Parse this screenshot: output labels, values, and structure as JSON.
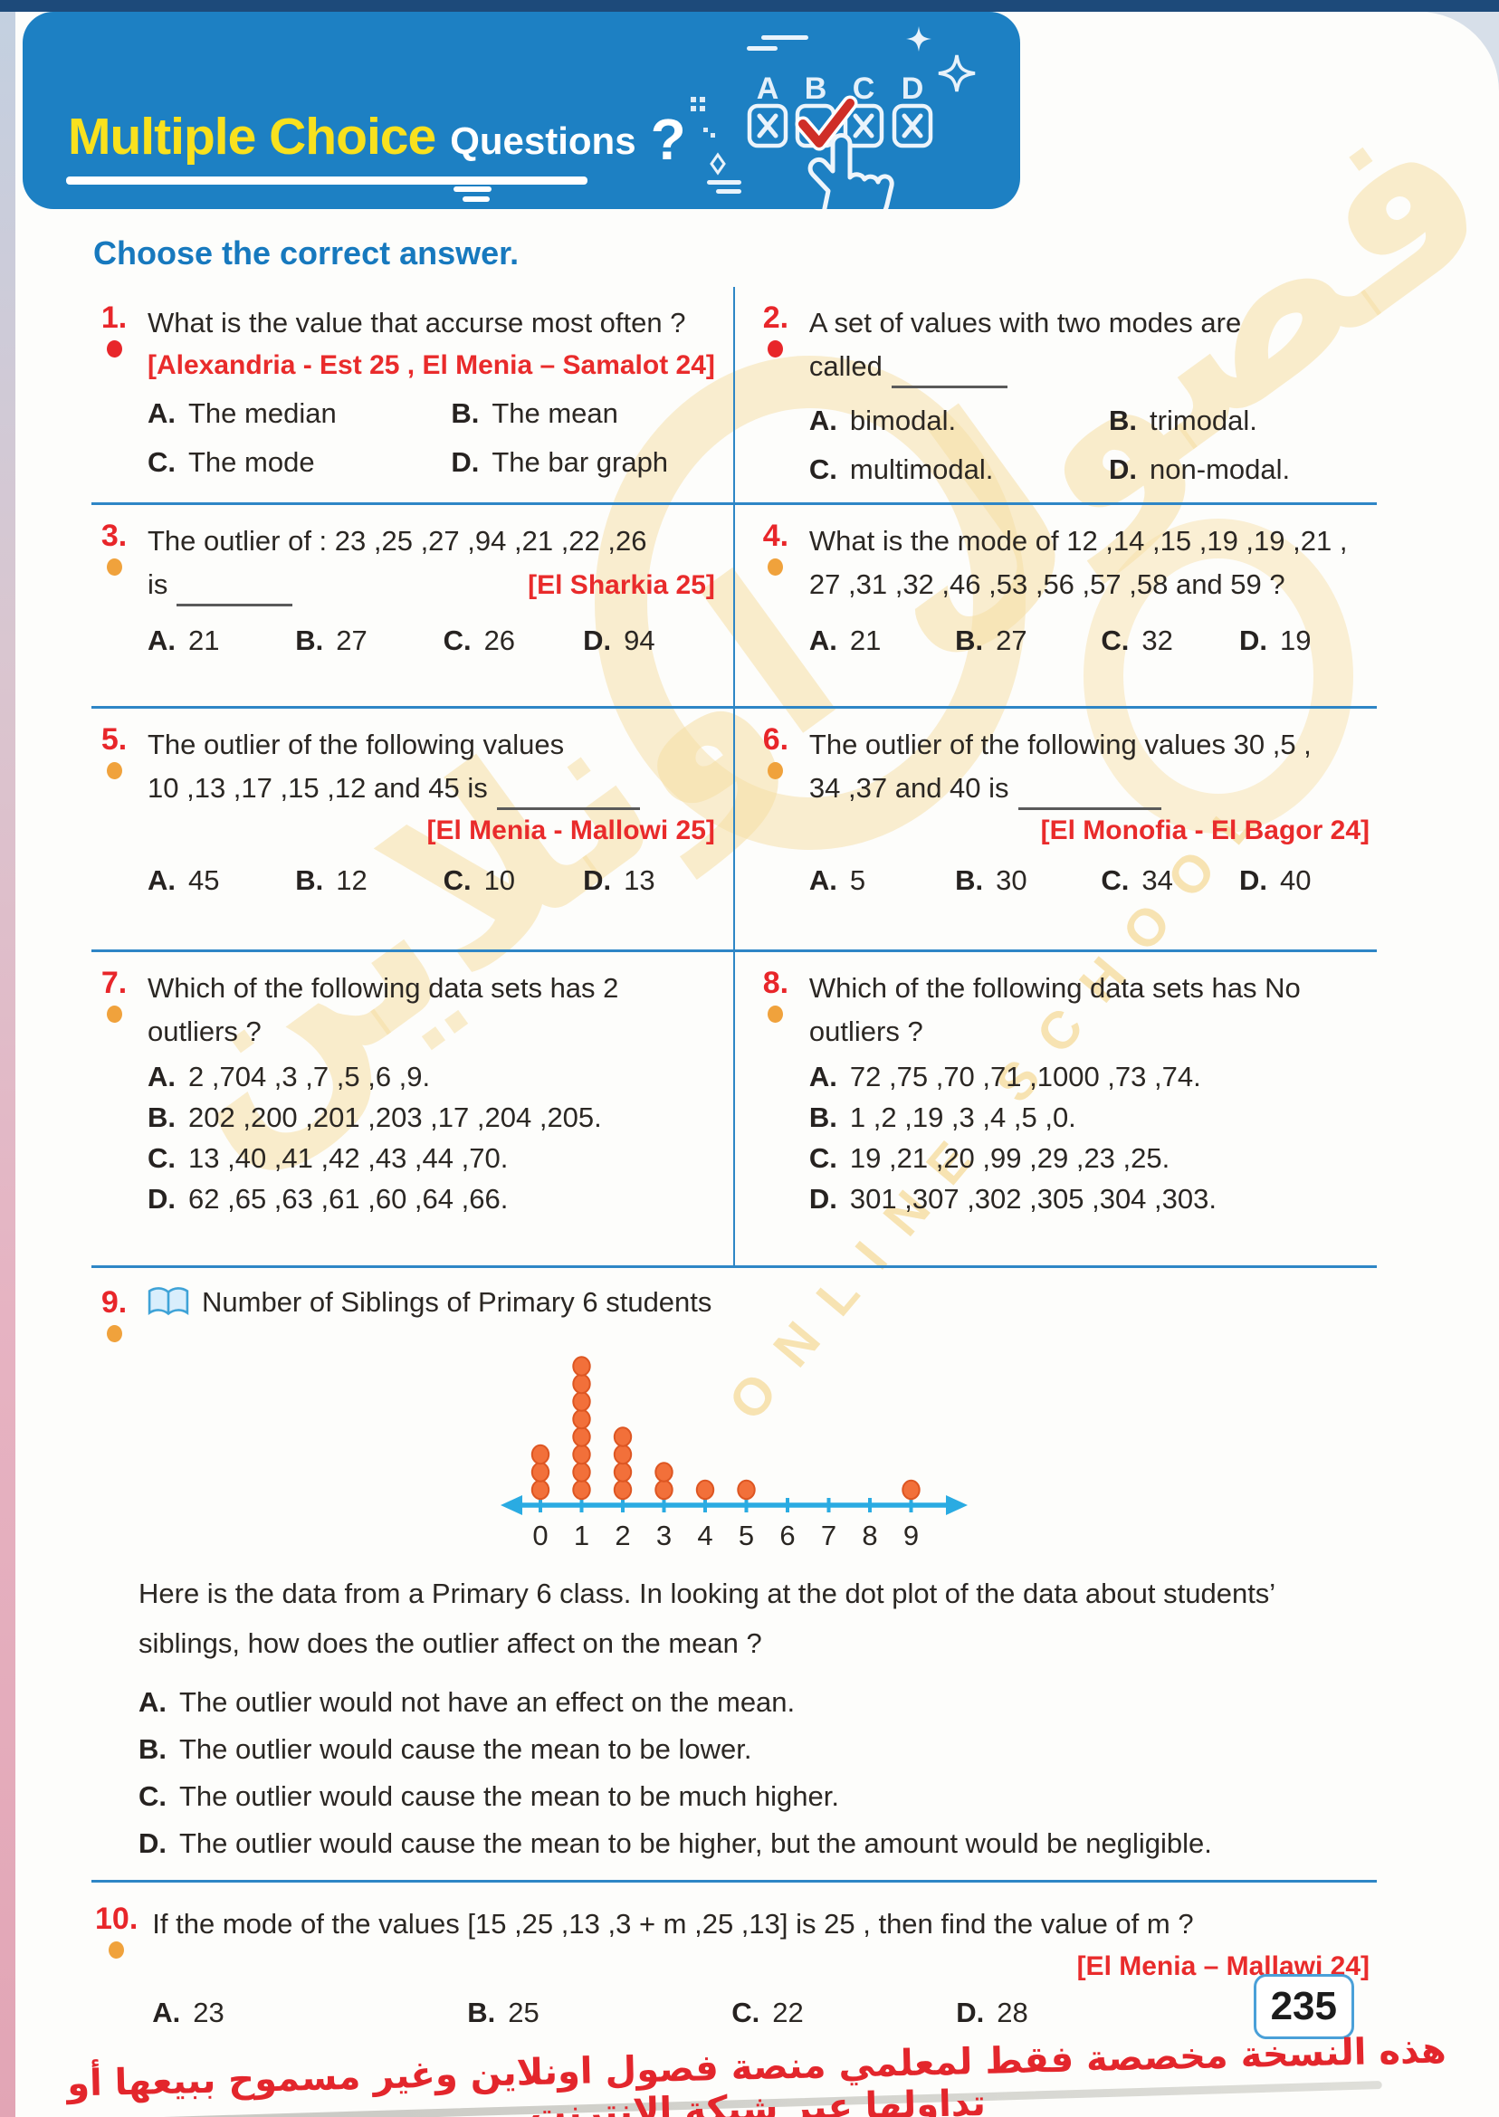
{
  "header": {
    "title_highlight": "Multiple Choice",
    "title_rest": "Questions",
    "question_mark": "?",
    "answer_icon": {
      "labels": [
        "A",
        "B",
        "C",
        "D"
      ],
      "checked": "B"
    }
  },
  "instruction": "Choose the correct answer.",
  "questions": [
    {
      "num": "1.",
      "text": "What is the value that accurse most often ?",
      "citation": "[Alexandria - Est 25 , El Menia – Samalot 24]",
      "options": [
        {
          "label": "A.",
          "text": "The median"
        },
        {
          "label": "B.",
          "text": "The mean"
        },
        {
          "label": "C.",
          "text": "The mode"
        },
        {
          "label": "D.",
          "text": "The bar graph"
        }
      ]
    },
    {
      "num": "2.",
      "text": "A set of values with two modes are",
      "text2": "called",
      "options": [
        {
          "label": "A.",
          "text": "bimodal."
        },
        {
          "label": "B.",
          "text": "trimodal."
        },
        {
          "label": "C.",
          "text": "multimodal."
        },
        {
          "label": "D.",
          "text": "non-modal."
        }
      ]
    },
    {
      "num": "3.",
      "text": "The outlier of : 23 ,25 ,27 ,94 ,21 ,22 ,26",
      "text2": "is",
      "citation": "[El Sharkia 25]",
      "options": [
        {
          "label": "A.",
          "text": "21"
        },
        {
          "label": "B.",
          "text": "27"
        },
        {
          "label": "C.",
          "text": "26"
        },
        {
          "label": "D.",
          "text": "94"
        }
      ]
    },
    {
      "num": "4.",
      "text": "What is the mode of 12 ,14 ,15 ,19 ,19 ,21 , 27 ,31 ,32 ,46 ,53 ,56 ,57 ,58 and 59 ?",
      "options": [
        {
          "label": "A.",
          "text": "21"
        },
        {
          "label": "B.",
          "text": "27"
        },
        {
          "label": "C.",
          "text": "32"
        },
        {
          "label": "D.",
          "text": "19"
        }
      ]
    },
    {
      "num": "5.",
      "text": "The outlier of the following values",
      "text2": "10 ,13 ,17 ,15 ,12 and 45 is",
      "citation": "[El Menia - Mallowi 25]",
      "options": [
        {
          "label": "A.",
          "text": "45"
        },
        {
          "label": "B.",
          "text": "12"
        },
        {
          "label": "C.",
          "text": "10"
        },
        {
          "label": "D.",
          "text": "13"
        }
      ]
    },
    {
      "num": "6.",
      "text": "The outlier of the following values 30 ,5 ,",
      "text2": "34 ,37 and 40 is",
      "citation": "[El Monofia - El Bagor 24]",
      "options": [
        {
          "label": "A.",
          "text": "5"
        },
        {
          "label": "B.",
          "text": "30"
        },
        {
          "label": "C.",
          "text": "34"
        },
        {
          "label": "D.",
          "text": "40"
        }
      ]
    },
    {
      "num": "7.",
      "text": "Which of the following data sets has 2 outliers ?",
      "options": [
        {
          "label": "A.",
          "text": "2 ,704 ,3 ,7 ,5 ,6 ,9."
        },
        {
          "label": "B.",
          "text": "202 ,200 ,201 ,203 ,17 ,204 ,205."
        },
        {
          "label": "C.",
          "text": "13 ,40 ,41 ,42 ,43 ,44 ,70."
        },
        {
          "label": "D.",
          "text": "62 ,65 ,63 ,61 ,60 ,64 ,66."
        }
      ]
    },
    {
      "num": "8.",
      "text": "Which of the following data sets has No outliers ?",
      "options": [
        {
          "label": "A.",
          "text": "72 ,75 ,70 ,71 ,1000 ,73 ,74."
        },
        {
          "label": "B.",
          "text": "1 ,2 ,19 ,3 ,4 ,5 ,0."
        },
        {
          "label": "C.",
          "text": "19 ,21 ,20 ,99 ,29 ,23 ,25."
        },
        {
          "label": "D.",
          "text": "301 ,307 ,302 ,305 ,304 ,303."
        }
      ]
    },
    {
      "num": "9.",
      "icon": "open-book-icon",
      "title": "Number of Siblings of Primary 6 students",
      "body": "Here is the data from a Primary 6 class. In looking at the dot plot of the data about students’ siblings, how does the outlier affect on the mean ?",
      "options": [
        {
          "label": "A.",
          "text": "The outlier would not have an effect on the mean."
        },
        {
          "label": "B.",
          "text": "The outlier would cause the mean to be lower."
        },
        {
          "label": "C.",
          "text": "The outlier would cause the mean to be much higher."
        },
        {
          "label": "D.",
          "text": "The outlier would cause the mean to be higher, but the amount would be negligible."
        }
      ]
    },
    {
      "num": "10.",
      "text": "If the mode of the values [15 ,25 ,13 ,3 + m ,25 ,13] is 25 , then find the value of m ?",
      "citation": "[El Menia – Mallawi 24]",
      "options": [
        {
          "label": "A.",
          "text": "23"
        },
        {
          "label": "B.",
          "text": "25"
        },
        {
          "label": "C.",
          "text": "22"
        },
        {
          "label": "D.",
          "text": "28"
        }
      ]
    }
  ],
  "chart_data": {
    "type": "dot_plot",
    "title": "Number of Siblings of Primary 6 students",
    "x": [
      0,
      1,
      2,
      3,
      4,
      5,
      6,
      7,
      8,
      9
    ],
    "counts": [
      3,
      8,
      4,
      2,
      1,
      1,
      0,
      0,
      0,
      1
    ],
    "xlabel": "",
    "ylabel": "",
    "xlim": [
      0,
      9
    ],
    "axis_color": "#2aabe2",
    "dot_color": "#f2703a",
    "dot_stroke": "#dd5622",
    "label_color": "#2a2622"
  },
  "page_number": "235",
  "footer_arabic": "هذه النسخة مخصصة فقط لمعلمي منصة فصول اونلاين وغير مسموح ببيعها أو تداولها عبر شبكة الانترنت",
  "watermark": {
    "arabic": "فصول اونلاين",
    "latin": "ONLINE SCHOOL"
  },
  "colors": {
    "banner_blue": "#1d80c3",
    "title_yellow": "#f9e11e",
    "number_red": "#e8262a",
    "bullet_orange": "#f0a23c",
    "rule_blue": "#2e86c6",
    "citation_red": "#e92b2b"
  }
}
